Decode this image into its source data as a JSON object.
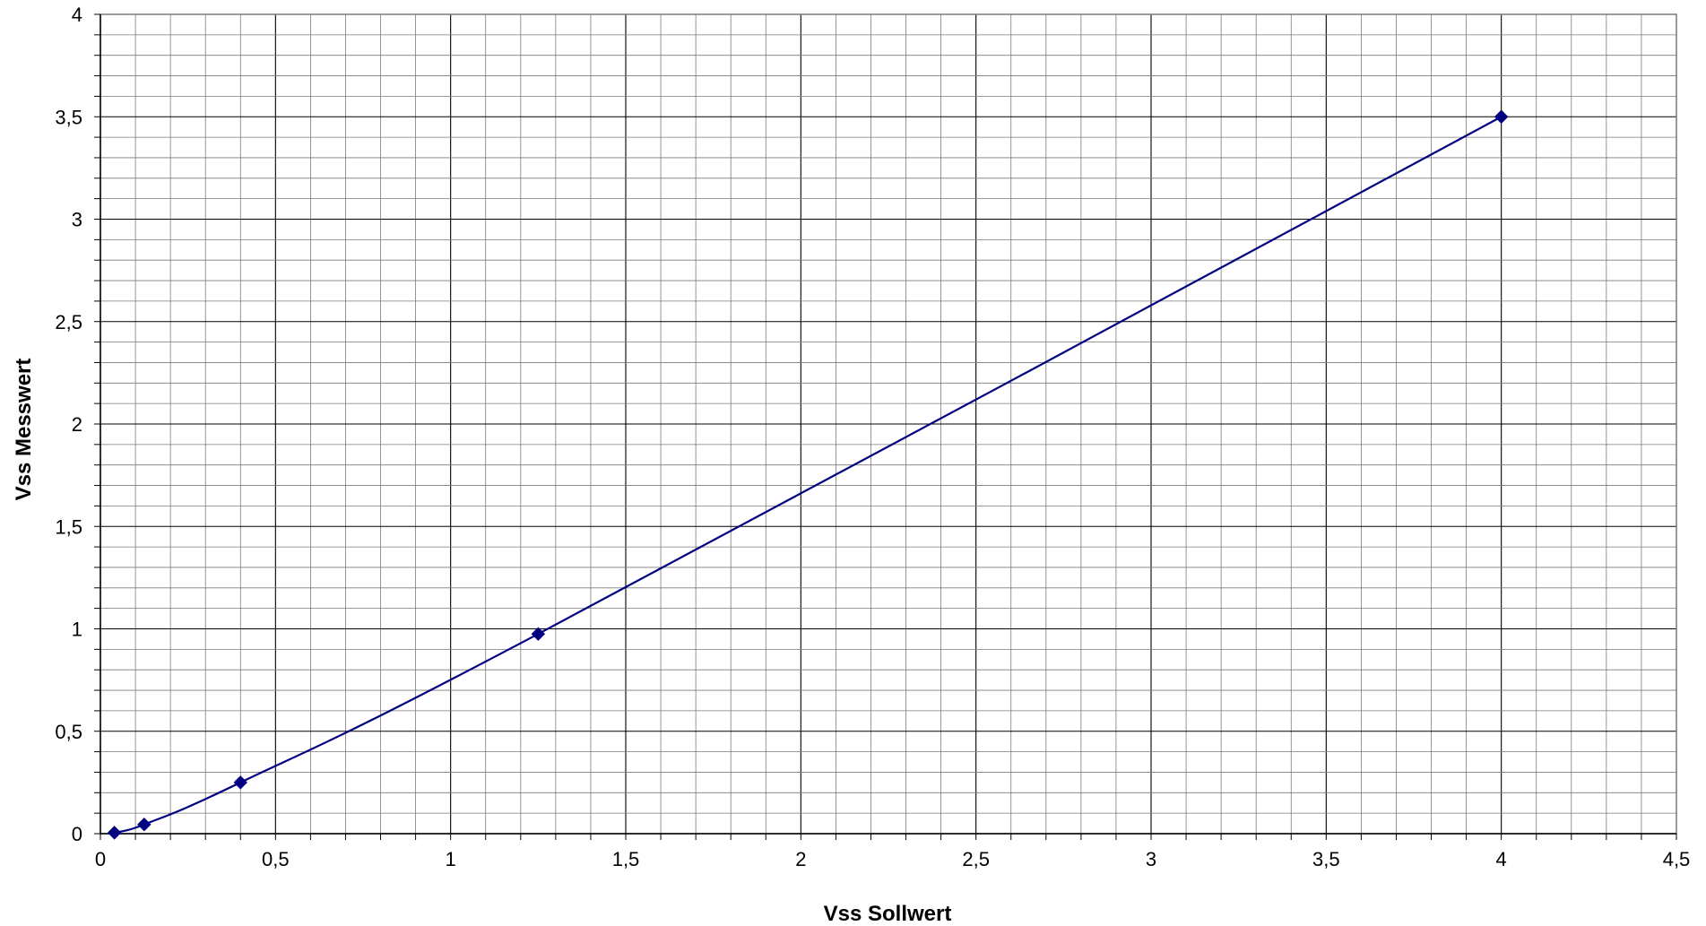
{
  "chart_data": {
    "type": "scatter",
    "title": "",
    "xlabel": "Vss Sollwert",
    "ylabel": "Vss Messwert",
    "xlim": [
      0,
      4.5
    ],
    "ylim": [
      0,
      4
    ],
    "grid": true,
    "x_ticks": [
      "0",
      "0,5",
      "1",
      "1,5",
      "2",
      "2,5",
      "3",
      "3,5",
      "4",
      "4,5"
    ],
    "y_ticks": [
      "0",
      "0,5",
      "1",
      "1,5",
      "2",
      "2,5",
      "3",
      "3,5",
      "4"
    ],
    "series": [
      {
        "x": [
          0.04,
          0.125,
          0.4,
          1.25,
          4.0
        ],
        "y": [
          0.005,
          0.045,
          0.25,
          0.975,
          3.5
        ],
        "color": "#000080",
        "marker": "diamond",
        "smooth_line": true
      }
    ]
  }
}
